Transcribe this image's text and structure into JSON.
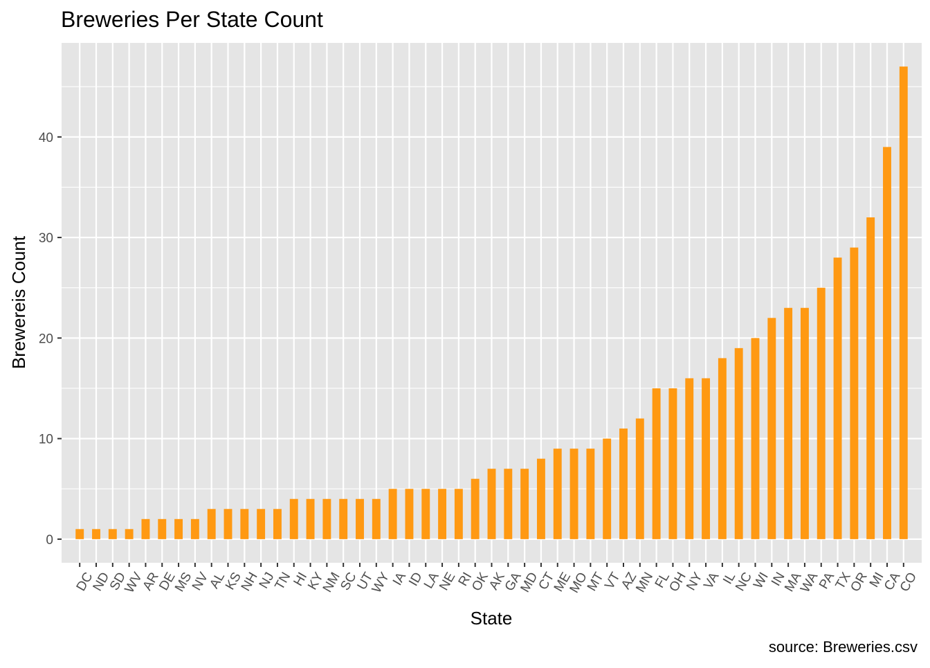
{
  "chart_data": {
    "type": "bar",
    "title": "Breweries Per State Count",
    "xlabel": "State",
    "ylabel": "Brewereis Count",
    "caption": "source: Breweries.csv",
    "colors": {
      "bar": "#FF9912",
      "panel": "#E5E5E5",
      "grid": "#FFFFFF",
      "tick": "#333333",
      "tick_label": "#4D4D4D"
    },
    "ylim": [
      -2.35,
      49.35
    ],
    "yticks": [
      0,
      10,
      20,
      30,
      40
    ],
    "grid": true,
    "legend": "none",
    "categories": [
      "DC",
      "ND",
      "SD",
      "WV",
      "AR",
      "DE",
      "MS",
      "NV",
      "AL",
      "KS",
      "NH",
      "NJ",
      "TN",
      "HI",
      "KY",
      "NM",
      "SC",
      "UT",
      "WY",
      "IA",
      "ID",
      "LA",
      "NE",
      "RI",
      "OK",
      "AK",
      "GA",
      "MD",
      "CT",
      "ME",
      "MO",
      "MT",
      "VT",
      "AZ",
      "MN",
      "FL",
      "OH",
      "NY",
      "VA",
      "IL",
      "NC",
      "WI",
      "IN",
      "MA",
      "WA",
      "PA",
      "TX",
      "OR",
      "MI",
      "CA",
      "CO"
    ],
    "values": [
      1,
      1,
      1,
      1,
      2,
      2,
      2,
      2,
      3,
      3,
      3,
      3,
      3,
      4,
      4,
      4,
      4,
      4,
      4,
      5,
      5,
      5,
      5,
      5,
      6,
      7,
      7,
      7,
      8,
      9,
      9,
      9,
      10,
      11,
      12,
      15,
      15,
      16,
      16,
      18,
      19,
      20,
      22,
      23,
      23,
      25,
      28,
      29,
      32,
      39,
      47
    ]
  }
}
